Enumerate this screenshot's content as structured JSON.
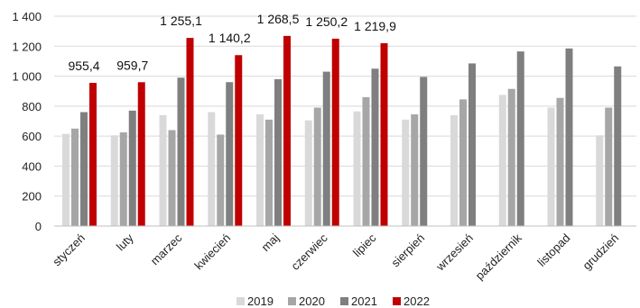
{
  "chart_data": {
    "type": "bar",
    "title": "",
    "xlabel": "",
    "ylabel": "",
    "ylim": [
      0,
      1400
    ],
    "yticks": [
      0,
      200,
      400,
      600,
      800,
      1000,
      1200,
      1400
    ],
    "ytick_labels": [
      "0",
      "200",
      "400",
      "600",
      "800",
      "1 000",
      "1 200",
      "1 400"
    ],
    "grid": "horizontal",
    "legend_position": "bottom",
    "categories": [
      "styczeń",
      "luty",
      "marzec",
      "kwiecień",
      "maj",
      "czerwiec",
      "lipiec",
      "sierpień",
      "wrzesień",
      "październik",
      "listopad",
      "grudzień"
    ],
    "series": [
      {
        "name": "2019",
        "color": "#d9d9d9",
        "values": [
          615,
          605,
          740,
          760,
          745,
          705,
          765,
          710,
          740,
          875,
          790,
          605
        ]
      },
      {
        "name": "2020",
        "color": "#a6a6a6",
        "values": [
          650,
          625,
          640,
          610,
          710,
          790,
          860,
          745,
          845,
          915,
          855,
          790
        ]
      },
      {
        "name": "2021",
        "color": "#7f7f7f",
        "values": [
          760,
          770,
          990,
          960,
          980,
          1030,
          1050,
          995,
          1085,
          1165,
          1185,
          1065
        ]
      },
      {
        "name": "2022",
        "color": "#c00000",
        "values": [
          955.4,
          959.7,
          1255.1,
          1140.2,
          1268.5,
          1250.2,
          1219.9,
          null,
          null,
          null,
          null,
          null
        ]
      }
    ],
    "data_labels": [
      "955,4",
      "959,7",
      "1 255,1",
      "1 140,2",
      "1 268,5",
      "1 250,2",
      "1 219,9"
    ]
  }
}
